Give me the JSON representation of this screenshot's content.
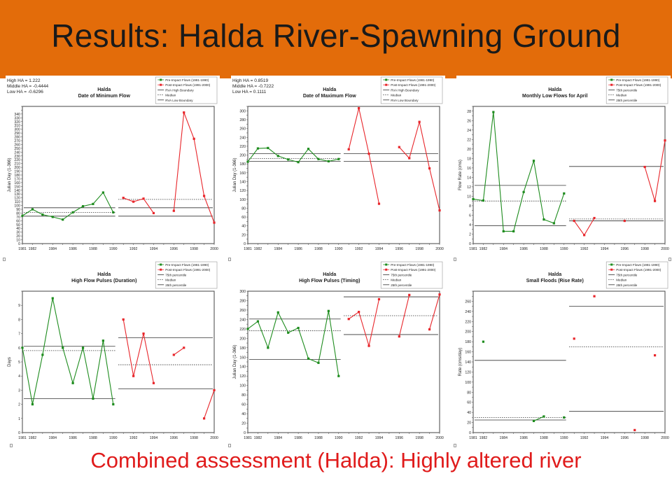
{
  "slide": {
    "title": "Results: Halda River-Spawning Ground",
    "footer": "Combined assessment (Halda): Highly altered river",
    "banner_color": "#e36c0a",
    "footer_color": "#e01b1b"
  },
  "colors": {
    "pre": "#1e8c1e",
    "post": "#e8262b",
    "boundary": "#333333"
  },
  "chart_data": [
    {
      "type": "line",
      "title": "Halda",
      "subtitle": "Date of Minimum Flow",
      "ylabel": "Julian Day (1-366)",
      "ylim": [
        0,
        360
      ],
      "yticks": [
        0,
        10,
        20,
        30,
        40,
        50,
        60,
        70,
        80,
        90,
        100,
        110,
        120,
        130,
        140,
        150,
        160,
        170,
        180,
        190,
        200,
        210,
        220,
        230,
        240,
        250,
        260,
        270,
        280,
        290,
        300,
        310,
        320,
        330,
        340
      ],
      "ytick_step": 10,
      "xlim": [
        1981,
        2000
      ],
      "xticks": [
        1981,
        1982,
        1984,
        1986,
        1988,
        1990,
        1992,
        1994,
        1996,
        1998,
        2000
      ],
      "stats": [
        "High HA = 1.222",
        "Middle HA = -0.4444",
        "Low HA = -0.6296"
      ],
      "legend": [
        "Pre-Impact Flows (1981-1990)",
        "Post-Impact Flows (1991-2000)",
        "RVA High Boundary",
        "Median",
        "RVA Low Boundary"
      ],
      "series": [
        {
          "name": "Pre-Impact Flows (1981-1990)",
          "color": "pre",
          "points": [
            [
              1981,
              73
            ],
            [
              1982,
              90
            ],
            [
              1983,
              76
            ],
            [
              1984,
              70
            ],
            [
              1985,
              63
            ],
            [
              1986,
              82
            ],
            [
              1987,
              98
            ],
            [
              1988,
              104
            ],
            [
              1989,
              134
            ],
            [
              1990,
              82
            ]
          ]
        },
        {
          "name": "Post-Impact Flows (1991-2000)",
          "color": "post",
          "points": [
            [
              1991,
              120
            ],
            [
              1992,
              110
            ],
            [
              1993,
              118
            ],
            [
              1994,
              80
            ],
            [
              1995,
              null
            ],
            [
              1996,
              86
            ],
            [
              1997,
              344
            ],
            [
              1998,
              275
            ],
            [
              1999,
              125
            ],
            [
              2000,
              55
            ]
          ]
        }
      ],
      "lines": [
        {
          "period": "pre",
          "style": "solid",
          "y": 94
        },
        {
          "period": "pre",
          "style": "dotted",
          "y": 82
        },
        {
          "period": "pre",
          "style": "solid",
          "y": 72
        },
        {
          "period": "post",
          "style": "solid",
          "y": 94
        },
        {
          "period": "post",
          "style": "dotted",
          "y": 116
        },
        {
          "period": "post",
          "style": "solid",
          "y": 72
        }
      ]
    },
    {
      "type": "line",
      "title": "Halda",
      "subtitle": "Date of Maximum Flow",
      "ylabel": "Julian Day (1-366)",
      "ylim": [
        0,
        310
      ],
      "yticks": [
        0,
        20,
        40,
        60,
        80,
        100,
        120,
        140,
        160,
        180,
        200,
        220,
        240,
        260,
        280,
        300
      ],
      "ytick_step": 10,
      "xlim": [
        1981,
        2000
      ],
      "xticks": [
        1981,
        1982,
        1984,
        1986,
        1988,
        1990,
        1992,
        1994,
        1996,
        1998,
        2000
      ],
      "stats": [
        "High HA = 0.8519",
        "Middle HA = -0.7222",
        "Low HA = 0.1111"
      ],
      "legend": [
        "Pre-Impact Flows (1981-1990)",
        "Post-Impact Flows (1991-2000)",
        "RVA High Boundary",
        "Median",
        "RVA Low Boundary"
      ],
      "series": [
        {
          "name": "Pre-Impact Flows (1981-1990)",
          "color": "pre",
          "points": [
            [
              1981,
              185
            ],
            [
              1982,
              215
            ],
            [
              1983,
              216
            ],
            [
              1984,
              198
            ],
            [
              1985,
              190
            ],
            [
              1986,
              184
            ],
            [
              1987,
              214
            ],
            [
              1988,
              191
            ],
            [
              1989,
              186
            ],
            [
              1990,
              191
            ]
          ]
        },
        {
          "name": "Post-Impact Flows (1991-2000)",
          "color": "post",
          "points": [
            [
              1991,
              213
            ],
            [
              1992,
              306
            ],
            [
              1993,
              203
            ],
            [
              1994,
              90
            ],
            [
              1995,
              null
            ],
            [
              1996,
              218
            ],
            [
              1997,
              193
            ],
            [
              1998,
              275
            ],
            [
              1999,
              170
            ],
            [
              2000,
              75
            ]
          ]
        }
      ],
      "lines": [
        {
          "period": "pre",
          "style": "solid",
          "y": 203
        },
        {
          "period": "pre",
          "style": "dotted",
          "y": 192
        },
        {
          "period": "pre",
          "style": "solid",
          "y": 186
        },
        {
          "period": "post",
          "style": "solid",
          "y": 203
        },
        {
          "period": "post",
          "style": "solid",
          "y": 186
        }
      ]
    },
    {
      "type": "line",
      "title": "Halda",
      "subtitle": "Monthly Low Flows for April",
      "ylabel": "Flow Rate (cms)",
      "ylim": [
        0,
        29
      ],
      "yticks": [
        0,
        2,
        4,
        6,
        8,
        10,
        12,
        14,
        16,
        18,
        20,
        22,
        24,
        26,
        28
      ],
      "ytick_step": 1,
      "xlim": [
        1981,
        2000
      ],
      "xticks": [
        1981,
        1982,
        1984,
        1986,
        1988,
        1990,
        1992,
        1994,
        1996,
        1998,
        2000
      ],
      "stats": [],
      "legend": [
        "Pre-Impact Flows (1981-1990)",
        "Post-Impact Flows (1991-2000)",
        "75th percentile",
        "Median",
        "25th percentile"
      ],
      "series": [
        {
          "name": "Pre-Impact Flows (1981-1990)",
          "color": "pre",
          "points": [
            [
              1981,
              9.4
            ],
            [
              1982,
              9.1
            ],
            [
              1983,
              27.8
            ],
            [
              1984,
              2.6
            ],
            [
              1985,
              2.6
            ],
            [
              1986,
              10.9
            ],
            [
              1987,
              17.5
            ],
            [
              1988,
              5.1
            ],
            [
              1989,
              4.3
            ],
            [
              1990,
              10.6
            ]
          ]
        },
        {
          "name": "Post-Impact Flows (1991-2000)",
          "color": "post",
          "points": [
            [
              1991,
              4.8
            ],
            [
              1992,
              1.8
            ],
            [
              1993,
              5.4
            ],
            [
              1994,
              null
            ],
            [
              1995,
              null
            ],
            [
              1996,
              4.8
            ],
            [
              1997,
              null
            ],
            [
              1998,
              16.2
            ],
            [
              1999,
              9.0
            ],
            [
              2000,
              21.8
            ]
          ]
        }
      ],
      "lines": [
        {
          "period": "pre",
          "style": "solid",
          "y": 12.3
        },
        {
          "period": "pre",
          "style": "dotted",
          "y": 9.0
        },
        {
          "period": "pre",
          "style": "solid",
          "y": 3.8
        },
        {
          "period": "post",
          "style": "solid",
          "y": 16.3
        },
        {
          "period": "post",
          "style": "dotted",
          "y": 5.2
        },
        {
          "period": "post",
          "style": "solid",
          "y": 4.8
        }
      ]
    },
    {
      "type": "line",
      "title": "Halda",
      "subtitle": "High Flow Pulses (Duration)",
      "ylabel": "Days",
      "ylim": [
        0,
        10
      ],
      "yticks": [
        0,
        1,
        2,
        3,
        4,
        5,
        6,
        7,
        8,
        9
      ],
      "ytick_step": 1,
      "xlim": [
        1981,
        2000
      ],
      "xticks": [
        1981,
        1982,
        1984,
        1986,
        1988,
        1990,
        1992,
        1994,
        1996,
        1998,
        2000
      ],
      "stats": [],
      "legend": [
        "Pre-Impact Flows (1981-1990)",
        "Post-Impact Flows (1991-2000)",
        "75th percentile",
        "Median",
        "25th percentile"
      ],
      "series": [
        {
          "name": "Pre-Impact Flows (1981-1990)",
          "color": "pre",
          "points": [
            [
              1981,
              6.0
            ],
            [
              1982,
              2.0
            ],
            [
              1983,
              5.5
            ],
            [
              1984,
              9.5
            ],
            [
              1985,
              6.0
            ],
            [
              1986,
              3.5
            ],
            [
              1987,
              6.0
            ],
            [
              1988,
              2.4
            ],
            [
              1989,
              6.5
            ],
            [
              1990,
              2.0
            ]
          ]
        },
        {
          "name": "Post-Impact Flows (1991-2000)",
          "color": "post",
          "points": [
            [
              1991,
              8.0
            ],
            [
              1992,
              4.0
            ],
            [
              1993,
              7.0
            ],
            [
              1994,
              3.5
            ],
            [
              1995,
              null
            ],
            [
              1996,
              5.5
            ],
            [
              1997,
              6.0
            ],
            [
              1998,
              null
            ],
            [
              1999,
              1.0
            ],
            [
              2000,
              3.0
            ]
          ]
        }
      ],
      "lines": [
        {
          "period": "pre",
          "style": "solid",
          "y": 6.1
        },
        {
          "period": "pre",
          "style": "dotted",
          "y": 5.8
        },
        {
          "period": "pre",
          "style": "solid",
          "y": 2.4
        },
        {
          "period": "post",
          "style": "solid",
          "y": 6.7
        },
        {
          "period": "post",
          "style": "dotted",
          "y": 4.8
        },
        {
          "period": "post",
          "style": "solid",
          "y": 3.1
        }
      ]
    },
    {
      "type": "line",
      "title": "Halda",
      "subtitle": "High Flow Pulses (Timing)",
      "ylabel": "Julian Day (1-366)",
      "ylim": [
        0,
        300
      ],
      "yticks": [
        0,
        20,
        40,
        60,
        80,
        100,
        120,
        140,
        160,
        180,
        200,
        220,
        240,
        260,
        280,
        300
      ],
      "ytick_step": 10,
      "xlim": [
        1981,
        2000
      ],
      "xticks": [
        1981,
        1982,
        1984,
        1986,
        1988,
        1990,
        1992,
        1994,
        1996,
        1998,
        2000
      ],
      "stats": [],
      "legend": [
        "Pre-Impact Flows (1981-1990)",
        "Post-Impact Flows (1991-2000)",
        "75th percentile",
        "Median",
        "25th percentile"
      ],
      "series": [
        {
          "name": "Pre-Impact Flows (1981-1990)",
          "color": "pre",
          "points": [
            [
              1981,
              220
            ],
            [
              1982,
              236
            ],
            [
              1983,
              180
            ],
            [
              1984,
              255
            ],
            [
              1985,
              212
            ],
            [
              1986,
              222
            ],
            [
              1987,
              157
            ],
            [
              1988,
              148
            ],
            [
              1989,
              258
            ],
            [
              1990,
              120
            ]
          ]
        },
        {
          "name": "Post-Impact Flows (1991-2000)",
          "color": "post",
          "points": [
            [
              1991,
              241
            ],
            [
              1992,
              256
            ],
            [
              1993,
              184
            ],
            [
              1994,
              283
            ],
            [
              1995,
              null
            ],
            [
              1996,
              204
            ],
            [
              1997,
              292
            ],
            [
              1998,
              null
            ],
            [
              1999,
              219
            ],
            [
              2000,
              293
            ]
          ]
        }
      ],
      "lines": [
        {
          "period": "pre",
          "style": "solid",
          "y": 241
        },
        {
          "period": "pre",
          "style": "dotted",
          "y": 216
        },
        {
          "period": "pre",
          "style": "solid",
          "y": 155
        },
        {
          "period": "post",
          "style": "solid",
          "y": 288
        },
        {
          "period": "post",
          "style": "dotted",
          "y": 248
        },
        {
          "period": "post",
          "style": "solid",
          "y": 208
        }
      ]
    },
    {
      "type": "line",
      "title": "Halda",
      "subtitle": "Small Floods (Rise Rate)",
      "ylabel": "Rate (cms/day)",
      "ylim": [
        0,
        280
      ],
      "yticks": [
        0,
        20,
        40,
        60,
        80,
        100,
        120,
        140,
        160,
        180,
        200,
        220,
        240,
        260
      ],
      "ytick_step": 10,
      "xlim": [
        1981,
        2000
      ],
      "xticks": [
        1981,
        1982,
        1984,
        1986,
        1988,
        1990,
        1992,
        1994,
        1996,
        1998,
        2000
      ],
      "stats": [],
      "legend": [
        "Pre-Impact Flows (1981-1990)",
        "Post-Impact Flows (1991-2000)",
        "75th percentile",
        "Median",
        "25th percentile"
      ],
      "series": [
        {
          "name": "Pre-Impact Flows (1981-1990)",
          "color": "pre",
          "points": [
            [
              1981,
              null
            ],
            [
              1982,
              180
            ],
            [
              1983,
              null
            ],
            [
              1984,
              null
            ],
            [
              1985,
              null
            ],
            [
              1986,
              null
            ],
            [
              1987,
              23
            ],
            [
              1988,
              32
            ],
            [
              1989,
              null
            ],
            [
              1990,
              30
            ]
          ]
        },
        {
          "name": "Post-Impact Flows (1991-2000)",
          "color": "post",
          "points": [
            [
              1991,
              186
            ],
            [
              1992,
              null
            ],
            [
              1993,
              270
            ],
            [
              1994,
              null
            ],
            [
              1995,
              null
            ],
            [
              1996,
              null
            ],
            [
              1997,
              5
            ],
            [
              1998,
              null
            ],
            [
              1999,
              153
            ],
            [
              2000,
              null
            ]
          ]
        }
      ],
      "lines": [
        {
          "period": "pre",
          "style": "solid",
          "y": 143
        },
        {
          "period": "pre",
          "style": "dotted",
          "y": 30
        },
        {
          "period": "pre",
          "style": "solid",
          "y": 25
        },
        {
          "period": "post",
          "style": "solid",
          "y": 250
        },
        {
          "period": "post",
          "style": "dotted",
          "y": 170
        },
        {
          "period": "post",
          "style": "solid",
          "y": 42
        }
      ]
    }
  ]
}
